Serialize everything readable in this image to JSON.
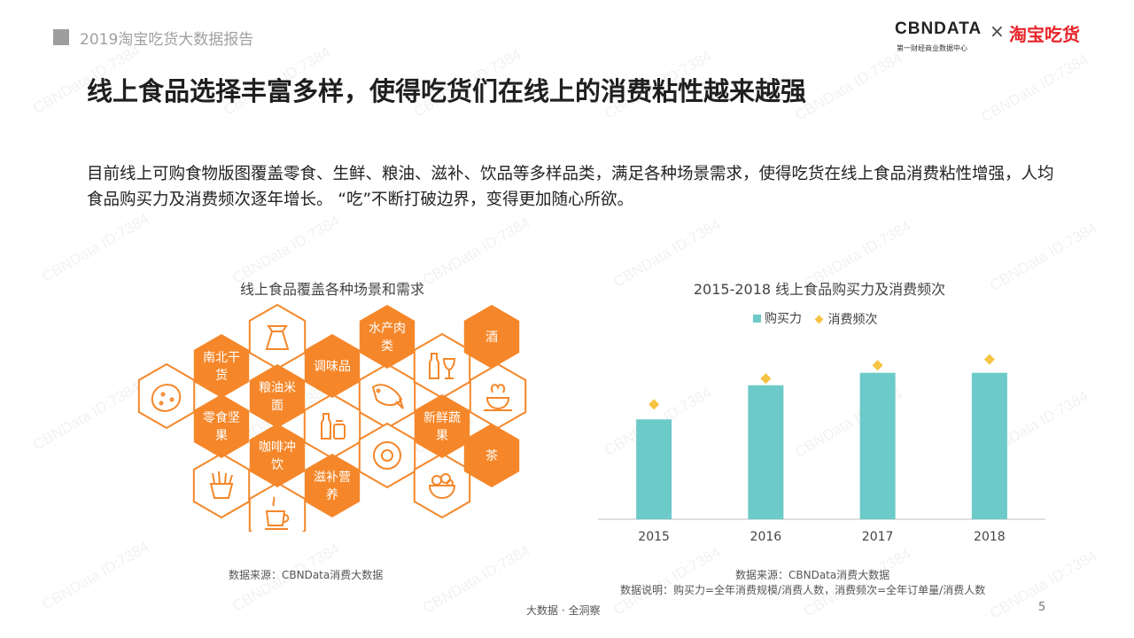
{
  "header": {
    "title": "2019淘宝吃货大数据报告"
  },
  "brand": {
    "cbn": "CBNDATA",
    "cbn_sub": "第一财经商业数据中心",
    "x": "×",
    "taobao": "淘宝吃货"
  },
  "main": {
    "title": "线上食品选择丰富多样，使得吃货们在线上的消费粘性越来越强",
    "desc": "目前线上可购食物版图覆盖零食、生鲜、粮油、滋补、饮品等多样品类，满足各种场景需求，使得吃货在线上食品消费粘性增强，人均食品购买力及消费频次逐年增长。 “吃”不断打破边界，变得更加随心所欲。"
  },
  "honeycomb": {
    "title": "线上食品覆盖各种场景和需求",
    "labels": {
      "nanbei": [
        "南北干",
        "货"
      ],
      "tiaowei": [
        "调味品"
      ],
      "shuichan": [
        "水产肉",
        "类"
      ],
      "jiu": [
        "酒"
      ],
      "liangyou": [
        "粮油米",
        "面"
      ],
      "lingshi": [
        "零食坚",
        "果"
      ],
      "xinxian": [
        "新鲜蔬",
        "果"
      ],
      "kafei": [
        "咖啡冲",
        "饮"
      ],
      "cha": [
        "茶"
      ],
      "zibu": [
        "滋补营",
        "养"
      ]
    },
    "icons": [
      "potato-icon",
      "rice-sack-icon",
      "fish-icon",
      "bottles-icon",
      "tea-cup-icon",
      "condiment-icon",
      "kiwi-icon",
      "fries-icon",
      "salad-icon",
      "coffee-icon"
    ],
    "source": "数据来源：CBNData消费大数据",
    "colors": {
      "orange": "#f5872a"
    }
  },
  "chart_data": {
    "type": "bar",
    "title": "2015-2018 线上食品购买力及消费频次",
    "categories": [
      "2015",
      "2016",
      "2017",
      "2018"
    ],
    "series": [
      {
        "name": "购买力",
        "type": "bar",
        "values": [
          120,
          161,
          176,
          176
        ],
        "color": "#6ccac9"
      },
      {
        "name": "消费频次",
        "type": "scatter",
        "marker": "diamond",
        "values": [
          138,
          169,
          185,
          192
        ],
        "color": "#f6c342"
      }
    ],
    "ylim": [
      0,
      230
    ],
    "grid": false,
    "legend": "top-center"
  },
  "chart_source": {
    "line1": "数据来源：CBNData消费大数据",
    "line2": "数据说明：购买力=全年消费规模/消费人数，消费频次=全年订单量/消费人数"
  },
  "footer": {
    "text": "大数据 · 全洞察",
    "page": "5"
  },
  "watermark": {
    "text": "CBNData ID:7384"
  }
}
